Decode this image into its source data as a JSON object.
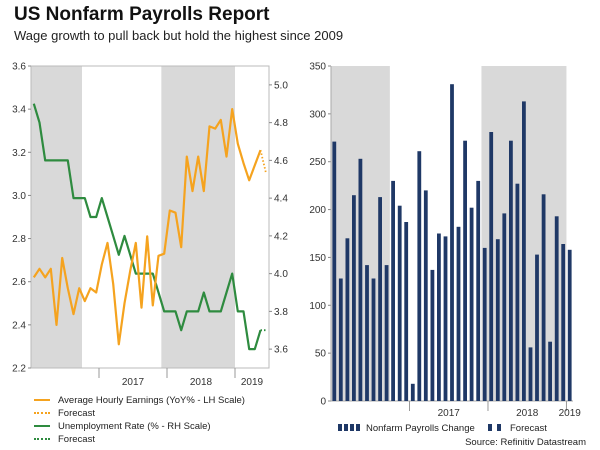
{
  "header": {
    "title": "US Nonfarm Payrolls Report",
    "subtitle": "Wage growth to pull back but hold the highest since 2009"
  },
  "colors": {
    "earnings": "#f5a31f",
    "unemployment": "#2e8b3f",
    "payrolls": "#1f3866",
    "shading": "#d9d9d9"
  },
  "chart_data": [
    {
      "type": "line",
      "legend_position": "bottom",
      "x_tick_labels": [
        "2017",
        "2018",
        "2019"
      ],
      "ylim_left": [
        2.2,
        3.6
      ],
      "yticks_left": [
        "2.2",
        "2.4",
        "2.6",
        "2.8",
        "3.0",
        "3.2",
        "3.4",
        "3.6"
      ],
      "ylim_right": [
        3.5,
        5.1
      ],
      "yticks_right": [
        "3.6",
        "3.8",
        "4.0",
        "4.2",
        "4.4",
        "4.6",
        "4.8",
        "5.0"
      ],
      "shaded_periods": [
        [
          "2016-01",
          "2016-09"
        ],
        [
          "2017-12",
          "2018-12"
        ]
      ],
      "x": [
        "2016-01",
        "2016-02",
        "2016-03",
        "2016-04",
        "2016-05",
        "2016-06",
        "2016-07",
        "2016-08",
        "2016-09",
        "2016-10",
        "2016-11",
        "2016-12",
        "2017-01",
        "2017-02",
        "2017-03",
        "2017-04",
        "2017-05",
        "2017-06",
        "2017-07",
        "2017-08",
        "2017-09",
        "2017-10",
        "2017-11",
        "2017-12",
        "2018-01",
        "2018-02",
        "2018-03",
        "2018-04",
        "2018-05",
        "2018-06",
        "2018-07",
        "2018-08",
        "2018-09",
        "2018-10",
        "2018-11",
        "2018-12",
        "2019-01",
        "2019-02",
        "2019-03",
        "2019-04",
        "2019-05",
        "2019-06"
      ],
      "series": [
        {
          "name": "Average Hourly Earnings (YoY% - LH Scale)",
          "axis": "left",
          "values": [
            2.62,
            2.66,
            2.62,
            2.66,
            2.4,
            2.71,
            2.57,
            2.45,
            2.57,
            2.51,
            2.57,
            2.55,
            2.68,
            2.78,
            2.59,
            2.31,
            2.5,
            2.65,
            2.78,
            2.48,
            2.81,
            2.49,
            2.72,
            2.73,
            2.93,
            2.92,
            2.76,
            3.18,
            3.02,
            3.18,
            3.02,
            3.32,
            3.31,
            3.35,
            3.18,
            3.4,
            3.24,
            3.15,
            3.07,
            3.14,
            3.21,
            null
          ],
          "forecast_name": "Forecast",
          "forecast": [
            [
              40,
              3.21
            ],
            [
              41,
              3.1
            ]
          ]
        },
        {
          "name": "Unemployment Rate (% - RH Scale)",
          "axis": "right",
          "values": [
            4.9,
            4.8,
            4.6,
            4.6,
            4.6,
            4.6,
            4.6,
            4.4,
            4.4,
            4.4,
            4.3,
            4.3,
            4.4,
            4.3,
            4.2,
            4.1,
            4.2,
            4.1,
            4.0,
            4.0,
            4.0,
            4.0,
            3.9,
            3.8,
            3.8,
            3.8,
            3.7,
            3.8,
            3.8,
            3.8,
            3.9,
            3.8,
            3.8,
            3.8,
            3.9,
            4.0,
            3.8,
            3.8,
            3.6,
            3.6,
            3.7,
            null
          ],
          "forecast_name": "Forecast",
          "forecast": [
            [
              40,
              3.7
            ],
            [
              41,
              3.7
            ]
          ]
        }
      ]
    },
    {
      "type": "bar",
      "legend_position": "bottom",
      "x_tick_labels": [
        "2017",
        "2018",
        "2019"
      ],
      "ylim": [
        0,
        350
      ],
      "yticks": [
        "0",
        "50",
        "100",
        "150",
        "200",
        "250",
        "300",
        "350"
      ],
      "shaded_periods": [
        [
          "2016-01",
          "2016-09"
        ],
        [
          "2017-12",
          "2018-12"
        ]
      ],
      "series": [
        {
          "name": "Nonfarm Payrolls Change",
          "values": [
            271,
            128,
            170,
            215,
            253,
            142,
            128,
            213,
            142,
            230,
            204,
            187,
            18,
            261,
            220,
            137,
            175,
            172,
            331,
            182,
            272,
            202,
            230,
            160,
            281,
            169,
            196,
            272,
            227,
            313,
            56,
            153,
            216,
            62,
            193,
            164
          ]
        },
        {
          "name": "Forecast",
          "values": [
            158
          ]
        }
      ]
    }
  ],
  "source": "Source: Refinitiv Datastream"
}
